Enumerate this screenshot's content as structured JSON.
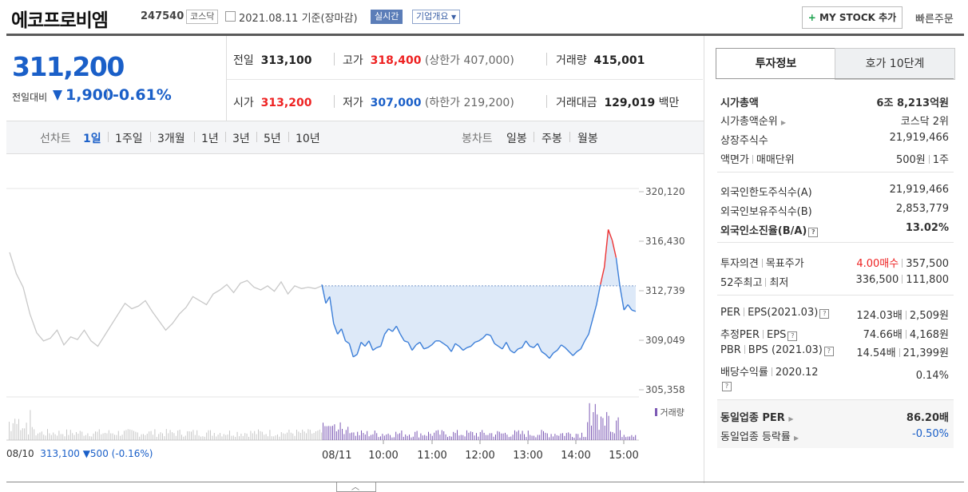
{
  "header": {
    "name": "에코프로비엠",
    "code": "247540",
    "market": "코스닥",
    "date": "2021.08.11",
    "basis": "기준(장마감)",
    "realtime": "실시간",
    "overview": "기업개요",
    "mystock": "MY STOCK 추가",
    "quick_order": "빠른주문"
  },
  "quote": {
    "price": "311,200",
    "change_label": "전일대비",
    "change": "1,900",
    "change_pct": "-0.61%",
    "prev_label": "전일",
    "prev": "313,100",
    "high_label": "고가",
    "high": "318,400",
    "upper_limit": "(상한가 407,000)",
    "volume_label": "거래량",
    "volume": "415,001",
    "open_label": "시가",
    "open": "313,200",
    "low_label": "저가",
    "low": "307,000",
    "lower_limit": "(하한가 219,200)",
    "amount_label": "거래대금",
    "amount": "129,019",
    "amount_unit": "백만"
  },
  "chart_tabs": {
    "line_label": "선차트",
    "periods": [
      "1일",
      "1주일",
      "3개월",
      "1년",
      "3년",
      "5년",
      "10년"
    ],
    "candle_label": "봉차트",
    "candle_periods": [
      "일봉",
      "주봉",
      "월봉"
    ]
  },
  "chart_data": {
    "type": "line",
    "y_ticks": [
      "320,120",
      "316,430",
      "312,739",
      "309,049",
      "305,358"
    ],
    "ylim": [
      305358,
      320120
    ],
    "x_ticks": [
      "08/11",
      "10:00",
      "11:00",
      "12:00",
      "13:00",
      "14:00",
      "15:00"
    ],
    "volume_label": "거래량",
    "prev_day_label": "08/10",
    "prev_close": "313,100",
    "prev_change": "500",
    "prev_change_pct": "(-0.16%)",
    "reference": 313100,
    "colors": {
      "up": "#e33",
      "down": "#3b7ed8",
      "fill": "#dde9f8",
      "prev": "#c8c8c8",
      "volume": "#7d5ab5"
    },
    "prev_series": [
      315600,
      314000,
      313000,
      311000,
      309600,
      309000,
      309200,
      309800,
      308700,
      309300,
      309100,
      309800,
      309000,
      308600,
      309400,
      310200,
      311000,
      311800,
      311400,
      311600,
      312000,
      311200,
      310500,
      309800,
      310300,
      311000,
      311500,
      312300,
      312000,
      311700,
      312500,
      312800,
      313200,
      312600,
      313300,
      313500,
      313000,
      312800,
      313100,
      312700,
      313400,
      312500,
      313100,
      312900,
      313000,
      312900,
      313100
    ],
    "today_series": [
      313200,
      311800,
      312300,
      310300,
      309500,
      309900,
      309000,
      308800,
      307800,
      308000,
      308900,
      308600,
      309000,
      308300,
      308500,
      308600,
      309500,
      309900,
      309700,
      310100,
      309500,
      309000,
      308900,
      308300,
      308700,
      308900,
      308400,
      308500,
      308700,
      309000,
      309000,
      308800,
      308600,
      308200,
      308800,
      308600,
      308300,
      308500,
      308600,
      308900,
      309000,
      309200,
      309500,
      309400,
      308800,
      308600,
      308400,
      308900,
      308300,
      308100,
      308400,
      308500,
      309000,
      308600,
      308500,
      308800,
      308200,
      308000,
      307700,
      308100,
      308300,
      308700,
      308500,
      308200,
      307900,
      308200,
      308400,
      309000,
      309500,
      310600,
      311700,
      313200,
      314500,
      317300,
      316500,
      315200,
      313000,
      311300,
      311700,
      311300,
      311200
    ]
  },
  "panel": {
    "tab_info": "투자정보",
    "tab_ask": "호가 10단계",
    "rows1": [
      {
        "label": "시가총액",
        "value": "6조 8,213억원",
        "bold": true
      },
      {
        "label": "시가총액순위",
        "value": "코스닥 2위"
      },
      {
        "label": "상장주식수",
        "value": "21,919,466"
      },
      {
        "label": "액면가",
        "label2": "매매단위",
        "value": "500원",
        "value2": "1주"
      }
    ],
    "rows2": [
      {
        "label": "외국인한도주식수(A)",
        "value": "21,919,466"
      },
      {
        "label": "외국인보유주식수(B)",
        "value": "2,853,779"
      },
      {
        "label": "외국인소진율(B/A)",
        "value": "13.02%",
        "bold": true
      }
    ],
    "rows3": [
      {
        "label": "투자의견",
        "label2": "목표주가",
        "value": "4.00매수",
        "value2": "357,500"
      },
      {
        "label": "52주최고",
        "label2": "최저",
        "value": "336,500",
        "value2": "111,800"
      }
    ],
    "rows4": [
      {
        "label": "PER",
        "label2": "EPS(2021.03)",
        "value": "124.03배",
        "value2": "2,509원"
      },
      {
        "label": "추정PER",
        "label2": "EPS",
        "value": "74.66배",
        "value2": "4,168원"
      },
      {
        "label": "PBR",
        "label2": "BPS (2021.03)",
        "value": "14.54배",
        "value2": "21,399원"
      },
      {
        "label": "배당수익률",
        "label2": "2020.12",
        "value": "0.14%"
      }
    ],
    "industry_per_label": "동일업종 PER",
    "industry_per": "86.20배",
    "industry_change_label": "동일업종 등락률",
    "industry_change": "-0.50%"
  }
}
